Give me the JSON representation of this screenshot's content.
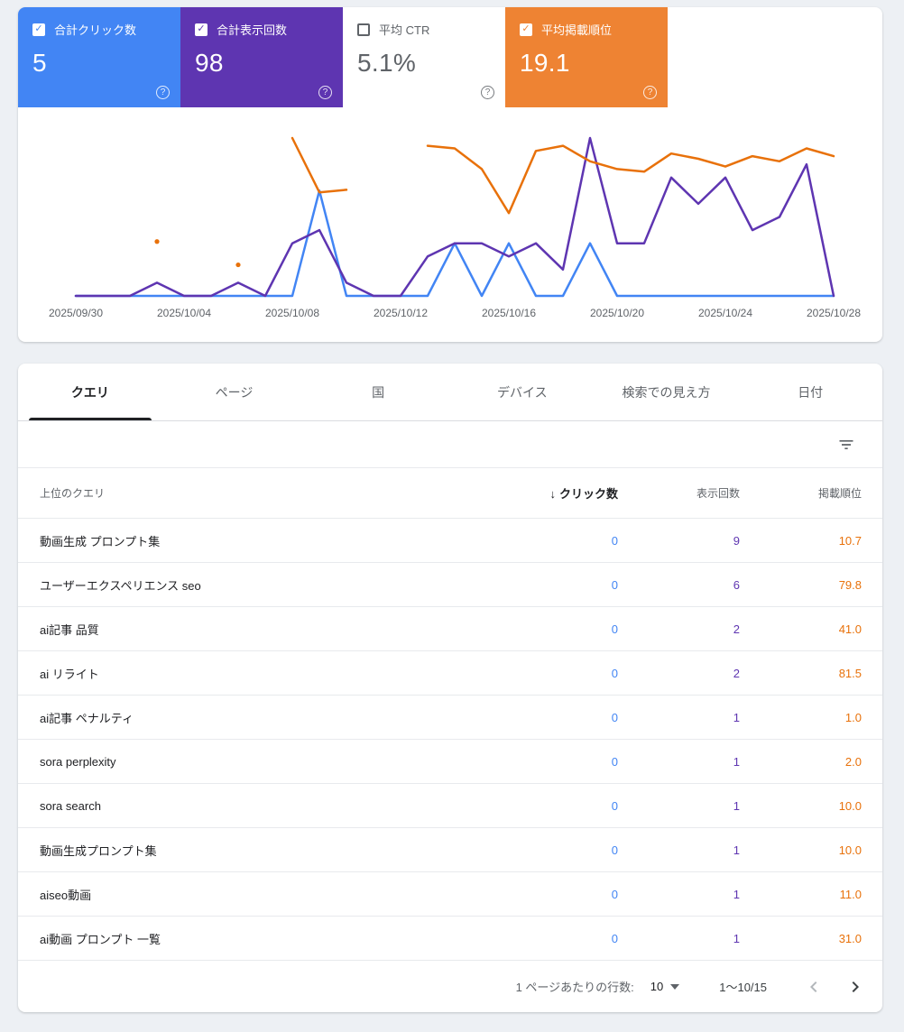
{
  "colors": {
    "page_bg": "#edf0f4",
    "clicks": "#4285f4",
    "impressions": "#5e35b1",
    "position": "#e8710a"
  },
  "icons": {
    "check": "✓",
    "help": "?",
    "sort_desc": "↓"
  },
  "summary_cards": [
    {
      "label": "合計クリック数",
      "value": "5",
      "checked": true,
      "bg": "#4285f4",
      "text": "#ffffff"
    },
    {
      "label": "合計表示回数",
      "value": "98",
      "checked": true,
      "bg": "#5e35b1",
      "text": "#ffffff"
    },
    {
      "label": "平均 CTR",
      "value": "5.1%",
      "checked": false,
      "bg": "#ffffff",
      "text": "#5f6368"
    },
    {
      "label": "平均掲載順位",
      "value": "19.1",
      "checked": true,
      "bg": "#ee8333",
      "text": "#ffffff"
    }
  ],
  "chart_data": {
    "type": "line",
    "x": [
      "2025/09/30",
      "2025/10/01",
      "2025/10/02",
      "2025/10/03",
      "2025/10/04",
      "2025/10/05",
      "2025/10/06",
      "2025/10/07",
      "2025/10/08",
      "2025/10/09",
      "2025/10/10",
      "2025/10/11",
      "2025/10/12",
      "2025/10/13",
      "2025/10/14",
      "2025/10/15",
      "2025/10/16",
      "2025/10/17",
      "2025/10/18",
      "2025/10/19",
      "2025/10/20",
      "2025/10/21",
      "2025/10/22",
      "2025/10/23",
      "2025/10/24",
      "2025/10/25",
      "2025/10/26",
      "2025/10/27",
      "2025/10/28"
    ],
    "x_tick_indices": [
      0,
      4,
      8,
      12,
      16,
      20,
      24,
      28
    ],
    "x_tick_labels": [
      "2025/09/30",
      "2025/10/04",
      "2025/10/08",
      "2025/10/12",
      "2025/10/16",
      "2025/10/20",
      "2025/10/24",
      "2025/10/28"
    ],
    "grid": false,
    "legend": "none",
    "series": [
      {
        "name": "合計クリック数",
        "color": "#4285f4",
        "axis_max": 3,
        "values": [
          0,
          0,
          0,
          0,
          0,
          0,
          0,
          0,
          0,
          2,
          0,
          0,
          0,
          0,
          1,
          0,
          1,
          0,
          0,
          1,
          0,
          0,
          0,
          0,
          0,
          0,
          0,
          0,
          0
        ]
      },
      {
        "name": "合計表示回数",
        "color": "#5e35b1",
        "axis_max": 12,
        "values": [
          0,
          0,
          0,
          1,
          0,
          0,
          1,
          0,
          4,
          5,
          1,
          0,
          0,
          3,
          4,
          4,
          3,
          4,
          2,
          12,
          4,
          4,
          9,
          7,
          9,
          5,
          6,
          10,
          0
        ]
      },
      {
        "name": "平均掲載順位",
        "color": "#e8710a",
        "axis": "inverted",
        "axis_range": [
          1,
          62
        ],
        "values": [
          null,
          null,
          null,
          41,
          null,
          null,
          50,
          null,
          1,
          22,
          21,
          null,
          null,
          4,
          5,
          13,
          30,
          6,
          4,
          10,
          13,
          14,
          7,
          9,
          12,
          8,
          10,
          5,
          8
        ]
      }
    ]
  },
  "tabs": [
    {
      "label": "クエリ",
      "active": true
    },
    {
      "label": "ページ",
      "active": false
    },
    {
      "label": "国",
      "active": false
    },
    {
      "label": "デバイス",
      "active": false
    },
    {
      "label": "検索での見え方",
      "active": false
    },
    {
      "label": "日付",
      "active": false
    }
  ],
  "table": {
    "headers": {
      "query": "上位のクエリ",
      "clicks": "クリック数",
      "impressions": "表示回数",
      "position": "掲載順位"
    },
    "sorted_by": "clicks",
    "rows": [
      {
        "query": "動画生成 プロンプト集",
        "clicks": "0",
        "impressions": "9",
        "position": "10.7"
      },
      {
        "query": "ユーザーエクスペリエンス seo",
        "clicks": "0",
        "impressions": "6",
        "position": "79.8"
      },
      {
        "query": "ai記事 品質",
        "clicks": "0",
        "impressions": "2",
        "position": "41.0"
      },
      {
        "query": "ai リライト",
        "clicks": "0",
        "impressions": "2",
        "position": "81.5"
      },
      {
        "query": "ai記事 ペナルティ",
        "clicks": "0",
        "impressions": "1",
        "position": "1.0"
      },
      {
        "query": "sora perplexity",
        "clicks": "0",
        "impressions": "1",
        "position": "2.0"
      },
      {
        "query": "sora search",
        "clicks": "0",
        "impressions": "1",
        "position": "10.0"
      },
      {
        "query": "動画生成プロンプト集",
        "clicks": "0",
        "impressions": "1",
        "position": "10.0"
      },
      {
        "query": "aiseo動画",
        "clicks": "0",
        "impressions": "1",
        "position": "11.0"
      },
      {
        "query": "ai動画 プロンプト 一覧",
        "clicks": "0",
        "impressions": "1",
        "position": "31.0"
      }
    ]
  },
  "pagination": {
    "rows_per_page_label": "1 ページあたりの行数:",
    "rows_per_page": "10",
    "range": "1〜10/15"
  }
}
